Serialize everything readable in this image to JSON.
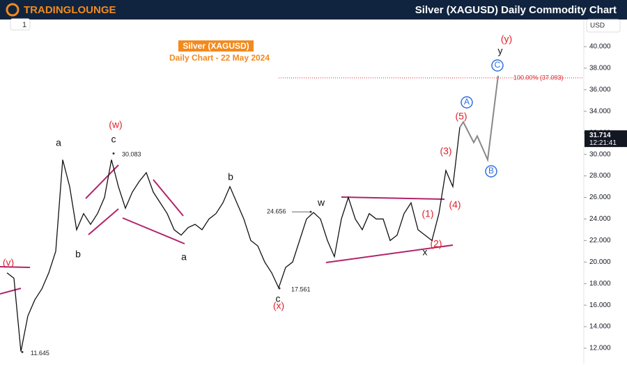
{
  "header": {
    "logo": "TradingLounge",
    "title": "Silver (XAGUSD) Daily Commodity Chart"
  },
  "toolbar": {
    "interval": "1",
    "currency": "USD"
  },
  "chart_data": {
    "type": "line",
    "title": "Silver (XAGUSD)",
    "subtitle": "Daily Chart - 22 May 2024",
    "ylim": [
      10.58,
      42.52
    ],
    "yticks": [
      {
        "value": 12,
        "label": "12.000"
      },
      {
        "value": 14,
        "label": "14.000"
      },
      {
        "value": 16,
        "label": "16.000"
      },
      {
        "value": 18,
        "label": "18.000"
      },
      {
        "value": 20,
        "label": "20.000"
      },
      {
        "value": 22,
        "label": "22.000"
      },
      {
        "value": 24,
        "label": "24.000"
      },
      {
        "value": 26,
        "label": "26.000"
      },
      {
        "value": 28,
        "label": "28.000"
      },
      {
        "value": 30,
        "label": "30.000"
      },
      {
        "value": 32,
        "label": "32.000"
      },
      {
        "value": 34,
        "label": "34.000"
      },
      {
        "value": 36,
        "label": "36.000"
      },
      {
        "value": 38,
        "label": "38.000"
      },
      {
        "value": 40,
        "label": "40.000"
      }
    ],
    "price": {
      "color": "#111111",
      "values": [
        19,
        18.5,
        11.7,
        15,
        16.5,
        17.5,
        19,
        21,
        29.5,
        27,
        23,
        24.5,
        23.5,
        24.5,
        26,
        29.5,
        27,
        25,
        26.5,
        27.5,
        28.3,
        26.5,
        25.5,
        24.5,
        23,
        22.5,
        23.2,
        23.5,
        23,
        24,
        24.5,
        25.5,
        27,
        25.5,
        24,
        22,
        21.5,
        20,
        19,
        17.6,
        19.5,
        20,
        22,
        24,
        24.6,
        24,
        22,
        20.5,
        24,
        26,
        24,
        23,
        24.5,
        24,
        24,
        22,
        22.5,
        24.5,
        25.5,
        23,
        22.5,
        22,
        24.5,
        28.5,
        27,
        32.5
      ]
    },
    "projection": {
      "color": "#888888",
      "x": [
        65,
        65.5,
        67,
        67.5,
        69,
        70.5
      ],
      "values": [
        32.5,
        33,
        31.1,
        31.7,
        29.5,
        37.3
      ]
    },
    "fib_level": {
      "value": 37.093,
      "label": "100.00% (37.093)"
    },
    "last_price": {
      "value": 31.714,
      "time": "12:21:41"
    },
    "price_labels": [
      {
        "value": 30.083,
        "label": "30.083"
      },
      {
        "value": 24.656,
        "label": "24.656"
      },
      {
        "value": 17.561,
        "label": "17.561"
      },
      {
        "value": 11.645,
        "label": "11.645"
      }
    ],
    "annotations": [
      {
        "text": "(y)",
        "color": "#e0202a"
      },
      {
        "text": "y",
        "color": "#111111"
      },
      {
        "text": "C",
        "color": "#2f6fe0"
      },
      {
        "text": "A",
        "color": "#2f6fe0"
      },
      {
        "text": "(5)",
        "color": "#e0202a"
      },
      {
        "text": "(3)",
        "color": "#e0202a"
      },
      {
        "text": "B",
        "color": "#2f6fe0"
      },
      {
        "text": "(4)",
        "color": "#e0202a"
      },
      {
        "text": "(1)",
        "color": "#e0202a"
      },
      {
        "text": "(2)",
        "color": "#e0202a"
      },
      {
        "text": "x",
        "color": "#111111"
      },
      {
        "text": "w",
        "color": "#111111"
      },
      {
        "text": "b",
        "color": "#111111"
      },
      {
        "text": "a",
        "color": "#111111"
      },
      {
        "text": "c",
        "color": "#111111"
      },
      {
        "text": "(x)",
        "color": "#e0202a"
      },
      {
        "text": "(w)",
        "color": "#e0202a"
      },
      {
        "text": "c",
        "color": "#111111"
      },
      {
        "text": "a",
        "color": "#111111"
      },
      {
        "text": "b",
        "color": "#111111"
      },
      {
        "text": "(v)",
        "color": "#e0202a"
      }
    ]
  }
}
